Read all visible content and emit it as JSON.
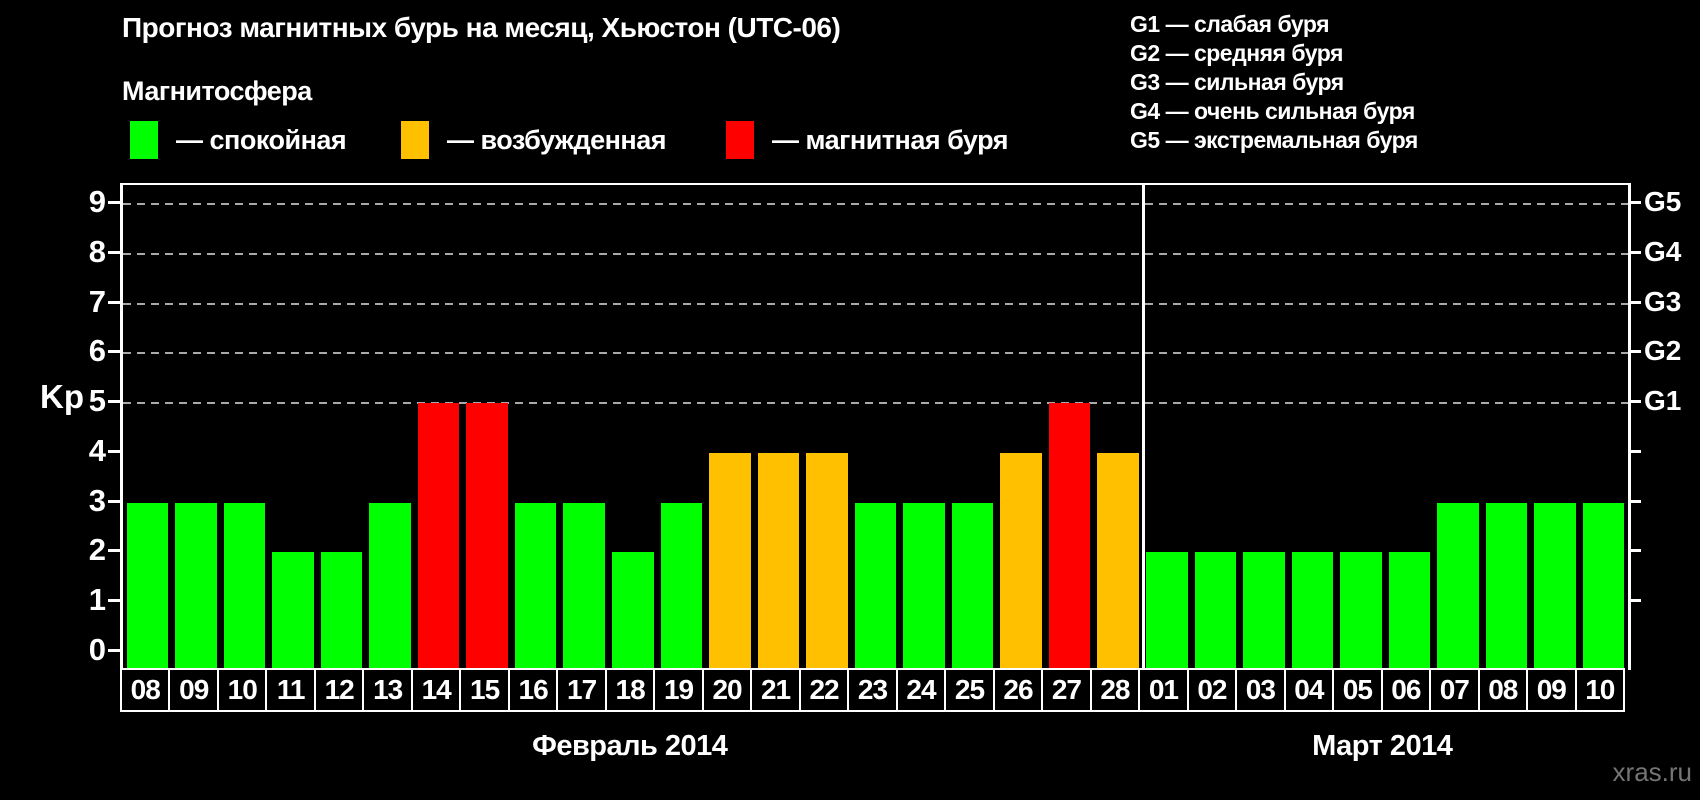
{
  "title": "Прогноз магнитных бурь на месяц, Хьюстон (UTC-06)",
  "legend": {
    "title": "Магнитосфера",
    "items": [
      {
        "status": "quiet",
        "color": "#00ff00",
        "label": "— спокойная"
      },
      {
        "status": "excited",
        "color": "#ffc000",
        "label": "— возбужденная"
      },
      {
        "status": "storm",
        "color": "#ff0000",
        "label": "— магнитная буря"
      }
    ]
  },
  "g_legend": [
    "G1 — слабая буря",
    "G2 — средняя буря",
    "G3 — сильная буря",
    "G4 — очень сильная буря",
    "G5 — экстремальная буря"
  ],
  "watermark": "xras.ru",
  "chart_data": {
    "type": "bar",
    "ylabel": "Kp",
    "ylim": [
      0,
      9
    ],
    "y_ticks": [
      0,
      1,
      2,
      3,
      4,
      5,
      6,
      7,
      8,
      9
    ],
    "grid_levels": [
      5,
      6,
      7,
      8,
      9
    ],
    "grid_color": "#a9a9a9",
    "legend_position": "top",
    "right_axis": [
      {
        "kp": 5,
        "label": "G1"
      },
      {
        "kp": 6,
        "label": "G2"
      },
      {
        "kp": 7,
        "label": "G3"
      },
      {
        "kp": 8,
        "label": "G4"
      },
      {
        "kp": 9,
        "label": "G5"
      }
    ],
    "status_colors": {
      "quiet": "#00ff00",
      "excited": "#ffc000",
      "storm": "#ff0000"
    },
    "groups": [
      {
        "label": "Февраль 2014",
        "days": [
          "08",
          "09",
          "10",
          "11",
          "12",
          "13",
          "14",
          "15",
          "16",
          "17",
          "18",
          "19",
          "20",
          "21",
          "22",
          "23",
          "24",
          "25",
          "26",
          "27",
          "28"
        ],
        "values": [
          3,
          3,
          3,
          2,
          2,
          3,
          5,
          5,
          3,
          3,
          2,
          3,
          4,
          4,
          4,
          3,
          3,
          3,
          4,
          5,
          4
        ],
        "status": [
          "quiet",
          "quiet",
          "quiet",
          "quiet",
          "quiet",
          "quiet",
          "storm",
          "storm",
          "quiet",
          "quiet",
          "quiet",
          "quiet",
          "excited",
          "excited",
          "excited",
          "quiet",
          "quiet",
          "quiet",
          "excited",
          "storm",
          "excited"
        ]
      },
      {
        "label": "Март 2014",
        "days": [
          "01",
          "02",
          "03",
          "04",
          "05",
          "06",
          "07",
          "08",
          "09",
          "10"
        ],
        "values": [
          2,
          2,
          2,
          2,
          2,
          2,
          3,
          3,
          3,
          3
        ],
        "status": [
          "quiet",
          "quiet",
          "quiet",
          "quiet",
          "quiet",
          "quiet",
          "quiet",
          "quiet",
          "quiet",
          "quiet"
        ]
      }
    ]
  }
}
